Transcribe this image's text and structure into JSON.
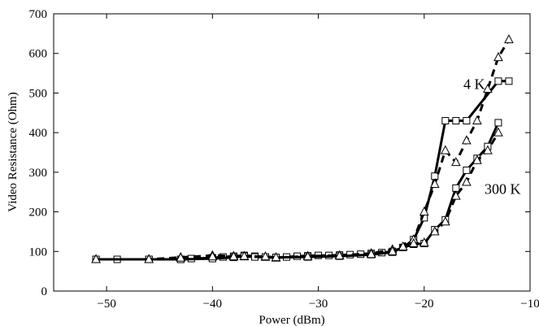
{
  "chart_data": {
    "type": "line",
    "xlabel": "Power (dBm)",
    "ylabel": "Video Resistance (Ohm)",
    "xlim": [
      -55,
      -10
    ],
    "ylim": [
      0,
      700
    ],
    "xticks": [
      -50,
      -40,
      -30,
      -20,
      -10
    ],
    "yticks": [
      0,
      100,
      200,
      300,
      400,
      500,
      600,
      700
    ],
    "xtick_labels": [
      "−50",
      "−40",
      "−30",
      "−20",
      "−10"
    ],
    "ytick_labels": [
      "0",
      "100",
      "200",
      "300",
      "400",
      "500",
      "600",
      "700"
    ],
    "grid": false,
    "legend": "none",
    "annotations": [
      {
        "text": "4 K",
        "x": -16.3,
        "y": 510
      },
      {
        "text": "300 K",
        "x": -14.3,
        "y": 245
      }
    ],
    "series": [
      {
        "style": "solid",
        "marker": "square",
        "color": "#000000",
        "x": [
          -51,
          -49,
          -46,
          -43,
          -42,
          -40,
          -39,
          -38,
          -37,
          -36,
          -35,
          -34,
          -33,
          -32,
          -31,
          -30,
          -29,
          -28,
          -27,
          -26,
          -25,
          -24,
          -23,
          -22,
          -21,
          -20,
          -19,
          -18,
          -17,
          -16,
          -13,
          -12
        ],
        "y": [
          80,
          80,
          80,
          80,
          82,
          84,
          86,
          88,
          90,
          88,
          86,
          84,
          86,
          88,
          89,
          90,
          90,
          91,
          92,
          93,
          95,
          97,
          100,
          110,
          130,
          185,
          290,
          430,
          430,
          430,
          530,
          530
        ]
      },
      {
        "style": "solid",
        "marker": "square",
        "color": "#000000",
        "x": [
          -51,
          -46,
          -43,
          -40,
          -38,
          -37,
          -36,
          -34,
          -31,
          -28,
          -25,
          -23,
          -22,
          -21,
          -20,
          -19,
          -18,
          -17,
          -16,
          -15,
          -14,
          -13
        ],
        "y": [
          80,
          80,
          80,
          82,
          85,
          88,
          86,
          85,
          86,
          88,
          92,
          98,
          110,
          118,
          120,
          155,
          180,
          260,
          305,
          335,
          365,
          425
        ]
      },
      {
        "style": "dashed",
        "marker": "triangle",
        "color": "#000000",
        "x": [
          -51,
          -46,
          -43,
          -40,
          -38,
          -37,
          -35,
          -34,
          -31,
          -28,
          -25,
          -23,
          -21,
          -20,
          -19,
          -18,
          -17,
          -16,
          -15,
          -14,
          -13,
          -12
        ],
        "y": [
          80,
          80,
          85,
          90,
          88,
          87,
          86,
          84,
          88,
          90,
          95,
          105,
          130,
          200,
          270,
          355,
          325,
          380,
          430,
          510,
          590,
          635
        ]
      },
      {
        "style": "dashed",
        "marker": "triangle",
        "color": "#000000",
        "x": [
          -51,
          -46,
          -43,
          -40,
          -38,
          -37,
          -35,
          -34,
          -31,
          -28,
          -25,
          -23,
          -22,
          -21,
          -20,
          -19,
          -18,
          -17,
          -16,
          -15,
          -14,
          -13
        ],
        "y": [
          80,
          80,
          84,
          87,
          87,
          88,
          87,
          85,
          87,
          89,
          93,
          100,
          112,
          120,
          122,
          150,
          175,
          240,
          275,
          330,
          355,
          400
        ]
      }
    ]
  }
}
